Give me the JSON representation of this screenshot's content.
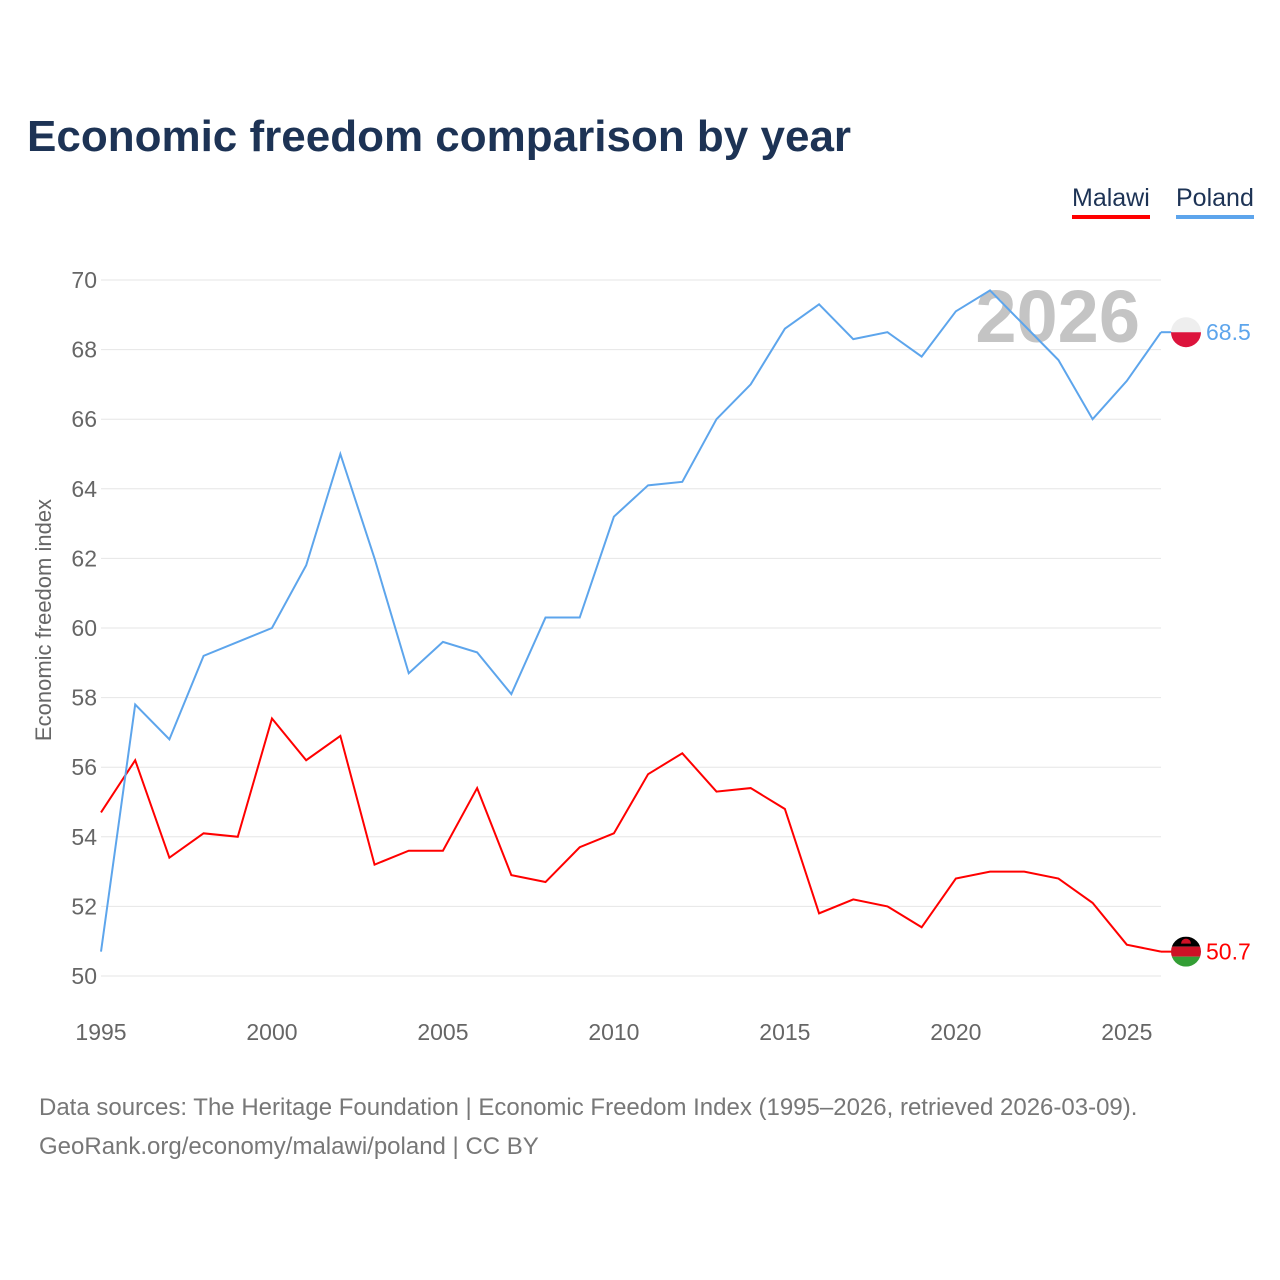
{
  "chart_data": {
    "type": "line",
    "title": "Economic freedom comparison by year",
    "ylabel": "Economic freedom index",
    "xlabel": "",
    "ylim": [
      50,
      70
    ],
    "xlim": [
      1995,
      2026
    ],
    "yticks": [
      50,
      52,
      54,
      56,
      58,
      60,
      62,
      64,
      66,
      68,
      70
    ],
    "xticks": [
      1995,
      2000,
      2005,
      2010,
      2015,
      2020,
      2025
    ],
    "grid": true,
    "legend_position": "top-right",
    "watermark_year": "2026",
    "x": [
      1995,
      1996,
      1997,
      1998,
      1999,
      2000,
      2001,
      2002,
      2003,
      2004,
      2005,
      2006,
      2007,
      2008,
      2009,
      2010,
      2011,
      2012,
      2013,
      2014,
      2015,
      2016,
      2017,
      2018,
      2019,
      2020,
      2021,
      2022,
      2023,
      2024,
      2025,
      2026
    ],
    "series": [
      {
        "name": "Malawi",
        "color": "#ff0000",
        "end_label": "50.7",
        "values": [
          54.7,
          56.2,
          53.4,
          54.1,
          54.0,
          57.4,
          56.2,
          56.9,
          53.2,
          53.6,
          53.6,
          55.4,
          52.9,
          52.7,
          53.7,
          54.1,
          55.8,
          56.4,
          55.3,
          55.4,
          54.8,
          51.8,
          52.2,
          52.0,
          51.4,
          52.8,
          53.0,
          53.0,
          52.8,
          52.1,
          50.9,
          50.7
        ]
      },
      {
        "name": "Poland",
        "color": "#5da5ec",
        "end_label": "68.5",
        "values": [
          50.7,
          57.8,
          56.8,
          59.2,
          59.6,
          60.0,
          61.8,
          65.0,
          62.0,
          58.7,
          59.6,
          59.3,
          58.1,
          60.3,
          60.3,
          63.2,
          64.1,
          64.2,
          66.0,
          67.0,
          68.6,
          69.3,
          68.3,
          68.5,
          67.8,
          69.1,
          69.7,
          68.7,
          67.7,
          66.0,
          67.1,
          68.5
        ]
      }
    ]
  },
  "source_line1": "Data sources: The Heritage Foundation | Economic Freedom Index (1995–2026, retrieved 2026-03-09).",
  "source_line2": "GeoRank.org/economy/malawi/poland | CC BY"
}
